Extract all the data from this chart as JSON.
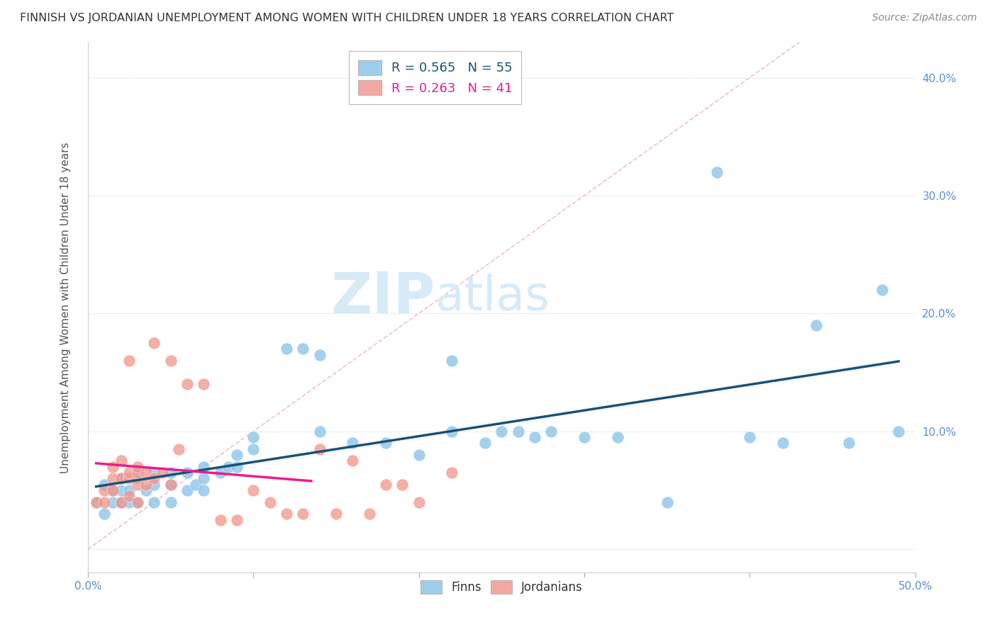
{
  "title": "FINNISH VS JORDANIAN UNEMPLOYMENT AMONG WOMEN WITH CHILDREN UNDER 18 YEARS CORRELATION CHART",
  "source": "Source: ZipAtlas.com",
  "ylabel": "Unemployment Among Women with Children Under 18 years",
  "xlim": [
    0.0,
    0.5
  ],
  "ylim": [
    -0.02,
    0.43
  ],
  "xticks": [
    0.0,
    0.1,
    0.2,
    0.3,
    0.4,
    0.5
  ],
  "yticks": [
    0.0,
    0.1,
    0.2,
    0.3,
    0.4
  ],
  "xticklabels": [
    "0.0%",
    "",
    "",
    "",
    "",
    "50.0%"
  ],
  "yticklabels_right": [
    "",
    "10.0%",
    "20.0%",
    "30.0%",
    "40.0%"
  ],
  "legend_blue": "R = 0.565   N = 55",
  "legend_pink": "R = 0.263   N = 41",
  "legend_label_blue": "Finns",
  "legend_label_pink": "Jordanians",
  "blue_color": "#85c1e9",
  "pink_color": "#f1948a",
  "trend_blue": "#1a5276",
  "trend_pink": "#e91e8c",
  "diag_color": "#f0c0c8",
  "background_color": "#ffffff",
  "grid_color": "#e8e8e8",
  "watermark_zip": "ZIP",
  "watermark_atlas": "atlas",
  "watermark_color": "#d6eaf8",
  "finns_x": [
    0.005,
    0.01,
    0.01,
    0.015,
    0.015,
    0.02,
    0.02,
    0.02,
    0.025,
    0.025,
    0.03,
    0.03,
    0.035,
    0.04,
    0.04,
    0.04,
    0.05,
    0.05,
    0.05,
    0.06,
    0.06,
    0.065,
    0.07,
    0.07,
    0.07,
    0.08,
    0.085,
    0.09,
    0.09,
    0.1,
    0.1,
    0.12,
    0.13,
    0.14,
    0.14,
    0.16,
    0.18,
    0.2,
    0.22,
    0.22,
    0.24,
    0.25,
    0.26,
    0.27,
    0.28,
    0.3,
    0.32,
    0.35,
    0.38,
    0.4,
    0.42,
    0.44,
    0.46,
    0.48,
    0.49
  ],
  "finns_y": [
    0.04,
    0.03,
    0.055,
    0.04,
    0.05,
    0.04,
    0.05,
    0.06,
    0.04,
    0.05,
    0.04,
    0.06,
    0.05,
    0.04,
    0.055,
    0.065,
    0.04,
    0.055,
    0.065,
    0.05,
    0.065,
    0.055,
    0.05,
    0.06,
    0.07,
    0.065,
    0.07,
    0.07,
    0.08,
    0.085,
    0.095,
    0.17,
    0.17,
    0.165,
    0.1,
    0.09,
    0.09,
    0.08,
    0.16,
    0.1,
    0.09,
    0.1,
    0.1,
    0.095,
    0.1,
    0.095,
    0.095,
    0.04,
    0.32,
    0.095,
    0.09,
    0.19,
    0.09,
    0.22,
    0.1
  ],
  "jordanians_x": [
    0.005,
    0.01,
    0.01,
    0.015,
    0.015,
    0.015,
    0.02,
    0.02,
    0.02,
    0.025,
    0.025,
    0.025,
    0.025,
    0.03,
    0.03,
    0.03,
    0.03,
    0.035,
    0.035,
    0.04,
    0.04,
    0.045,
    0.05,
    0.05,
    0.055,
    0.06,
    0.07,
    0.08,
    0.09,
    0.1,
    0.11,
    0.12,
    0.13,
    0.14,
    0.15,
    0.16,
    0.17,
    0.18,
    0.19,
    0.2,
    0.22
  ],
  "jordanians_y": [
    0.04,
    0.04,
    0.05,
    0.05,
    0.06,
    0.07,
    0.04,
    0.06,
    0.075,
    0.045,
    0.06,
    0.065,
    0.16,
    0.04,
    0.055,
    0.065,
    0.07,
    0.055,
    0.065,
    0.06,
    0.175,
    0.065,
    0.055,
    0.16,
    0.085,
    0.14,
    0.14,
    0.025,
    0.025,
    0.05,
    0.04,
    0.03,
    0.03,
    0.085,
    0.03,
    0.075,
    0.03,
    0.055,
    0.055,
    0.04,
    0.065
  ],
  "pink_trend_x0": 0.005,
  "pink_trend_x1": 0.135,
  "blue_trend_x0": 0.005,
  "blue_trend_x1": 0.49
}
